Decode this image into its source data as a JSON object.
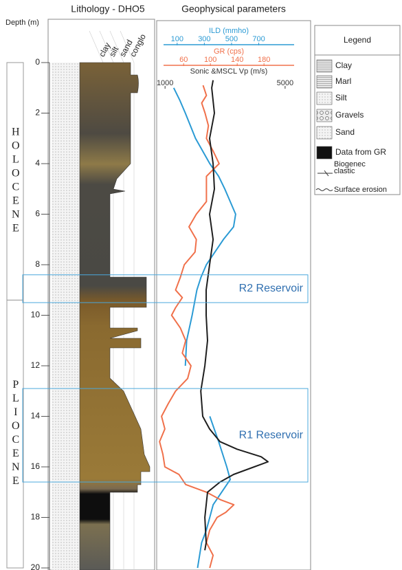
{
  "chart_data": {
    "type": "well-log",
    "titles": [
      "Lithology - DHO5",
      "Geophysical parameters"
    ],
    "ylabel": "Depth (m)",
    "ylim": [
      0,
      20
    ],
    "yticks": [
      0,
      2,
      4,
      6,
      8,
      10,
      12,
      14,
      16,
      18,
      20
    ],
    "grain_size_labels": [
      "clay",
      "silt",
      "sand",
      "conglo"
    ],
    "epochs": [
      {
        "label": "HOLOCENE",
        "top": 0,
        "bottom": 9.4
      },
      {
        "label": "PLIOCENE",
        "top": 9.4,
        "bottom": 20
      }
    ],
    "reservoirs": [
      {
        "label": "R2 Reservoir",
        "top": 8.4,
        "bottom": 9.5
      },
      {
        "label": "R1 Reservoir",
        "top": 12.9,
        "bottom": 16.6
      }
    ],
    "series": [
      {
        "name": "ILD (mmho)",
        "color": "#2a9ad4",
        "xlim": [
          0,
          960
        ],
        "xticks": [
          100,
          300,
          500,
          700
        ],
        "y": [
          1.0,
          1.5,
          2,
          3,
          4,
          4.5,
          5,
          5.5,
          6,
          6.5,
          7,
          8,
          8.5,
          9,
          10,
          11,
          12,
          null,
          14,
          15,
          16,
          16.5,
          17.5,
          18.5,
          19,
          20
        ],
        "values": [
          75,
          120,
          160,
          235,
          340,
          405,
          450,
          490,
          530,
          515,
          440,
          315,
          275,
          245,
          210,
          170,
          160,
          null,
          340,
          405,
          465,
          490,
          365,
          315,
          280,
          250
        ]
      },
      {
        "name": "GR (cps)",
        "color": "#f0704a",
        "xlim": [
          30,
          225
        ],
        "xticks": [
          60,
          100,
          140,
          180
        ],
        "y": [
          0.9,
          1.3,
          1.6,
          2,
          2.5,
          3,
          3.5,
          4,
          4.5,
          5,
          5.5,
          6,
          6.5,
          7,
          7.5,
          8,
          8.5,
          9,
          9.3,
          9.7,
          10,
          10.5,
          11,
          11.5,
          12,
          12.5,
          13,
          13.5,
          14,
          14.5,
          15,
          15.5,
          16,
          16.3,
          16.7,
          17,
          17.3,
          17.5,
          17.8,
          18,
          18.5,
          19,
          19.5,
          20
        ],
        "values": [
          89,
          94,
          87,
          92,
          97,
          94,
          104,
          113,
          94,
          94,
          94,
          79,
          68,
          79,
          77,
          61,
          55,
          48,
          58,
          48,
          42,
          55,
          63,
          58,
          71,
          66,
          48,
          37,
          27,
          32,
          24,
          29,
          32,
          53,
          63,
          94,
          115,
          135,
          123,
          110,
          99,
          94,
          104,
          99
        ]
      },
      {
        "name": "Sonic &MSCL Vp (m/s)",
        "color": "#1e1e1e",
        "xlim": [
          950,
          5300
        ],
        "xticks": [
          1000,
          5000
        ],
        "y": [
          0.7,
          1,
          2,
          3,
          4,
          5,
          6,
          7,
          8,
          9,
          10,
          11,
          12,
          13,
          14,
          14.5,
          15,
          15.3,
          15.6,
          15.8,
          16,
          16.3,
          16.6,
          17,
          18,
          19,
          19.3
        ],
        "values": [
          2600,
          2555,
          2645,
          2485,
          2600,
          2645,
          2485,
          2600,
          2485,
          2370,
          2370,
          2415,
          2325,
          2190,
          2255,
          2485,
          2830,
          3400,
          4200,
          4430,
          3970,
          3285,
          2830,
          2415,
          2325,
          2370,
          2325
        ]
      }
    ],
    "legend": {
      "title": "Legend",
      "items": [
        {
          "label": [
            "Clay"
          ]
        },
        {
          "label": [
            "Marl"
          ]
        },
        {
          "label": [
            "Silt"
          ]
        },
        {
          "label": [
            "Gravels"
          ]
        },
        {
          "label": [
            "Sand"
          ]
        },
        {
          "label": [
            "Data from GR"
          ]
        },
        {
          "label": [
            "Biogenec",
            "clastic"
          ]
        },
        {
          "label": [
            "Surface erosion"
          ]
        }
      ]
    }
  }
}
